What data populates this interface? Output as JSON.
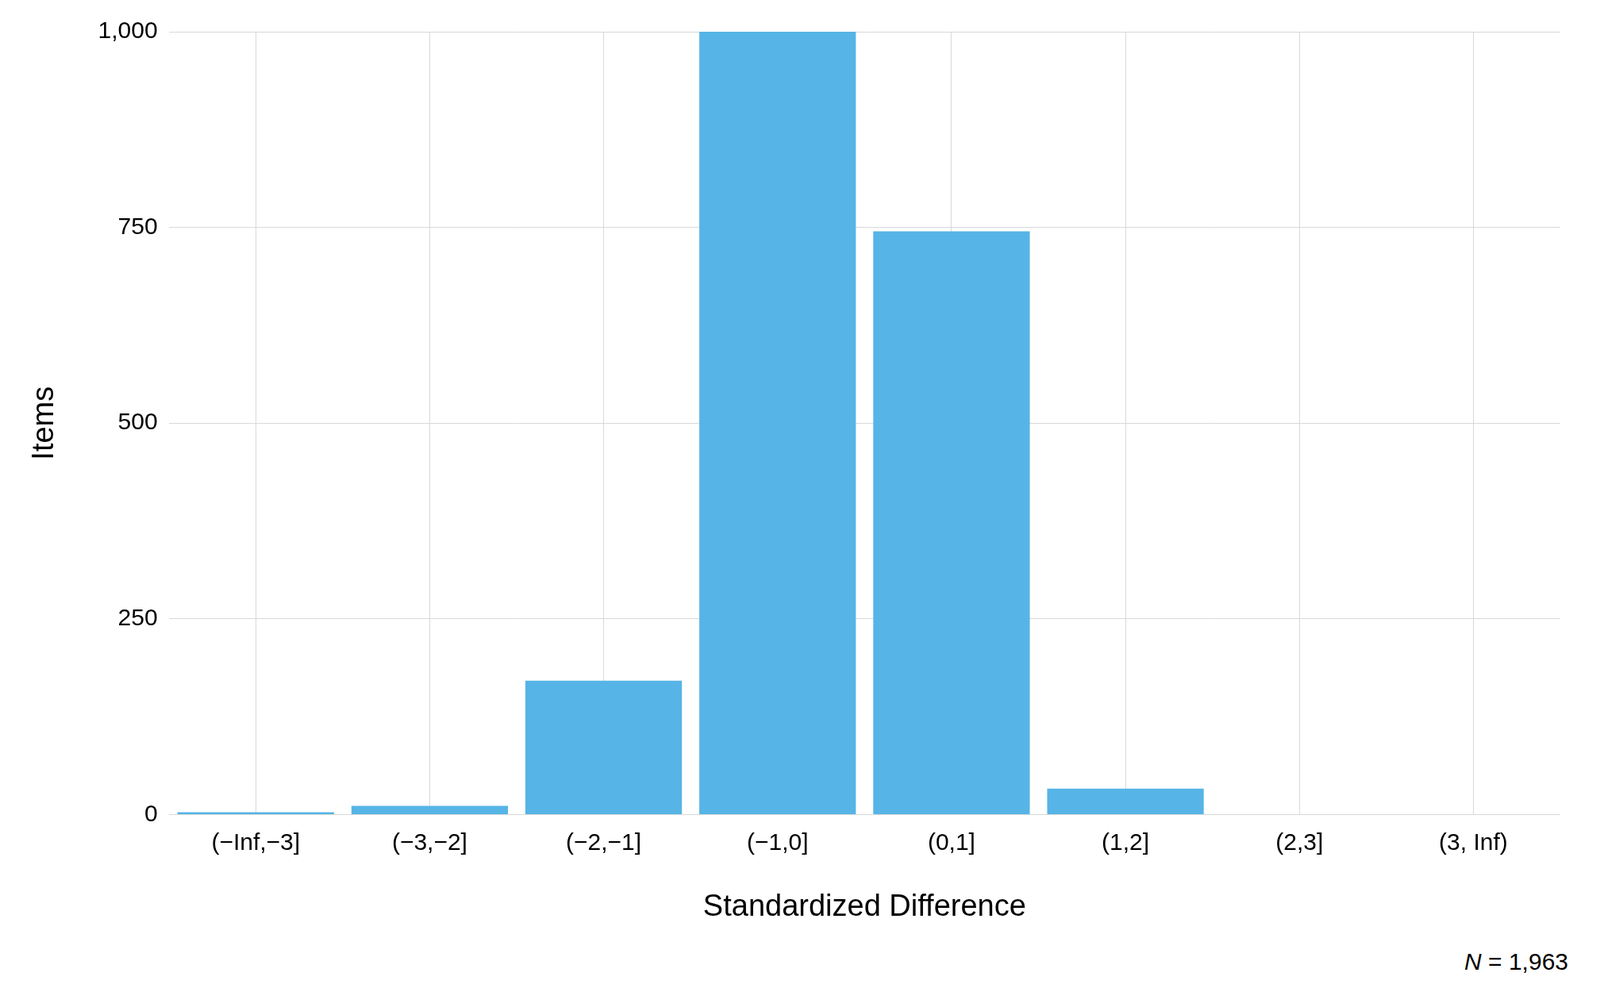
{
  "chart_data": {
    "type": "bar",
    "x_label": "Standardized Difference",
    "y_label": "Items",
    "annotation": "N = 1,963",
    "categories": [
      "(−Inf,−3]",
      "(−3,−2]",
      "(−2,−1]",
      "(−1,0]",
      "(0,1]",
      "(1,2]",
      "(2,3]",
      "(3, Inf)"
    ],
    "values": [
      3,
      11,
      171,
      1000,
      745,
      33,
      0,
      0
    ],
    "color": "#56b4e6",
    "ylim": [
      0,
      1000
    ],
    "yticks": [
      0,
      250,
      500,
      750,
      1000
    ],
    "grid": true
  }
}
